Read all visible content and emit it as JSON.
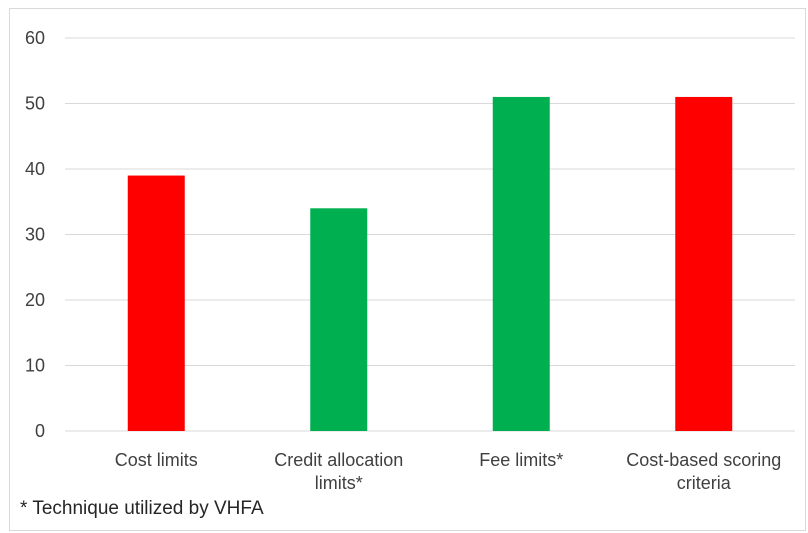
{
  "chart_data": {
    "type": "bar",
    "categories": [
      [
        "Cost limits"
      ],
      [
        "Credit allocation",
        "limits*"
      ],
      [
        "Fee limits*"
      ],
      [
        "Cost-based scoring",
        "criteria"
      ]
    ],
    "values": [
      39,
      34,
      51,
      51
    ],
    "bar_colors": [
      "#ff0000",
      "#00b050",
      "#00b050",
      "#ff0000"
    ],
    "ylim": [
      0,
      60
    ],
    "yticks": [
      0,
      10,
      20,
      30,
      40,
      50,
      60
    ],
    "grid": true,
    "legend": "none",
    "title": "",
    "xlabel": "",
    "ylabel": ""
  },
  "footnote": "* Technique utilized by VHFA",
  "colors": {
    "grid": "#d9d9d9",
    "axis_text": "#404040"
  }
}
